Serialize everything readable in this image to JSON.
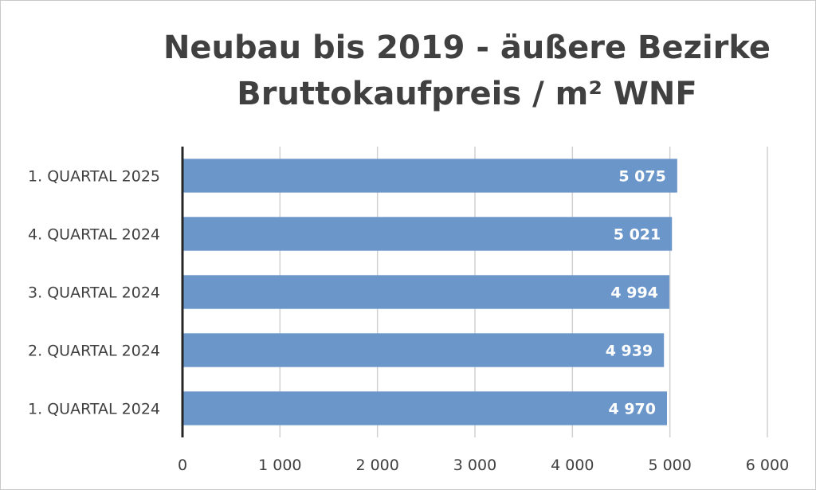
{
  "chart_data": {
    "type": "bar",
    "orientation": "horizontal",
    "title_lines": [
      "Neubau bis 2019 - äußere Bezirke",
      "Bruttokaufpreis / m² WNF"
    ],
    "categories": [
      "1. QUARTAL 2025",
      "4. QUARTAL 2024",
      "3. QUARTAL 2024",
      "2. QUARTAL 2024",
      "1. QUARTAL 2024"
    ],
    "values": [
      5075,
      5021,
      4994,
      4939,
      4970
    ],
    "value_labels": [
      "5 075",
      "5 021",
      "4 994",
      "4 939",
      "4 970"
    ],
    "xlim": [
      0,
      6000
    ],
    "x_ticks": [
      0,
      1000,
      2000,
      3000,
      4000,
      5000,
      6000
    ],
    "x_tick_labels": [
      "0",
      "1 000",
      "2 000",
      "3 000",
      "4 000",
      "5 000",
      "6 000"
    ],
    "grid": true,
    "bar_color": "#6a96ca",
    "gridline_color": "#d0d0d0",
    "axis_color": "#262626"
  }
}
